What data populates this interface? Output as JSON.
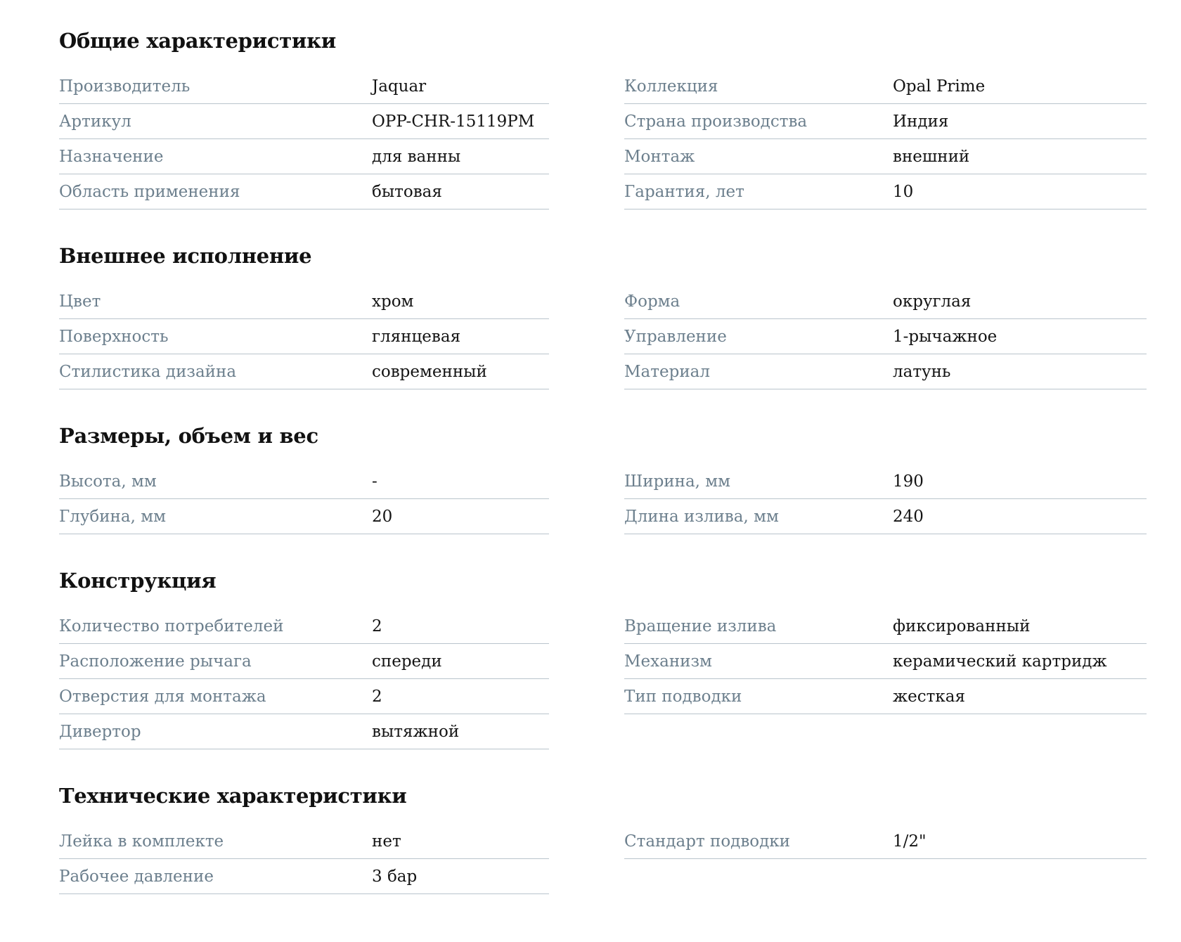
{
  "sections": [
    {
      "title": "Общие характеристики",
      "left": [
        {
          "label": "Производитель",
          "value": "Jaquar"
        },
        {
          "label": "Артикул",
          "value": "OPP-CHR-15119PM"
        },
        {
          "label": "Назначение",
          "value": "для ванны"
        },
        {
          "label": "Область применения",
          "value": "бытовая"
        }
      ],
      "right": [
        {
          "label": "Коллекция",
          "value": "Opal Prime"
        },
        {
          "label": "Страна производства",
          "value": "Индия"
        },
        {
          "label": "Монтаж",
          "value": "внешний"
        },
        {
          "label": "Гарантия, лет",
          "value": "10"
        }
      ]
    },
    {
      "title": "Внешнее исполнение",
      "left": [
        {
          "label": "Цвет",
          "value": "хром"
        },
        {
          "label": "Поверхность",
          "value": "глянцевая"
        },
        {
          "label": "Стилистика дизайна",
          "value": "современный"
        }
      ],
      "right": [
        {
          "label": "Форма",
          "value": "округлая"
        },
        {
          "label": "Управление",
          "value": "1-рычажное"
        },
        {
          "label": "Материал",
          "value": "латунь"
        }
      ]
    },
    {
      "title": "Размеры, объем и вес",
      "left": [
        {
          "label": "Высота, мм",
          "value": "-"
        },
        {
          "label": "Глубина, мм",
          "value": "20"
        }
      ],
      "right": [
        {
          "label": "Ширина, мм",
          "value": "190"
        },
        {
          "label": "Длина излива, мм",
          "value": "240"
        }
      ]
    },
    {
      "title": "Конструкция",
      "left": [
        {
          "label": "Количество потребителей",
          "value": "2"
        },
        {
          "label": "Расположение рычага",
          "value": "спереди"
        },
        {
          "label": "Отверстия для монтажа",
          "value": "2"
        },
        {
          "label": "Дивертор",
          "value": "вытяжной"
        }
      ],
      "right": [
        {
          "label": "Вращение излива",
          "value": "фиксированный"
        },
        {
          "label": "Механизм",
          "value": "керамический картридж"
        },
        {
          "label": "Тип подводки",
          "value": "жесткая"
        }
      ]
    },
    {
      "title": "Технические характеристики",
      "left": [
        {
          "label": "Лейка в комплекте",
          "value": "нет"
        },
        {
          "label": "Рабочее давление",
          "value": "3 бар"
        }
      ],
      "right": [
        {
          "label": "Стандарт подводки",
          "value": "1/2\""
        }
      ]
    }
  ]
}
